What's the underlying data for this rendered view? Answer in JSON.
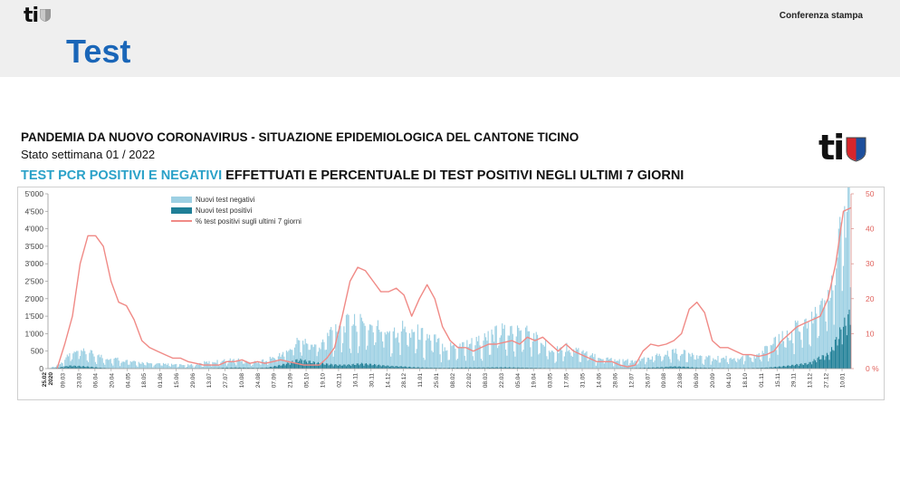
{
  "header": {
    "logo_text": "ti",
    "conference_label": "Conferenza stampa",
    "page_title": "Test"
  },
  "report": {
    "title": "PANDEMIA DA NUOVO CORONAVIRUS - SITUAZIONE EPIDEMIOLOGICA DEL CANTONE TICINO",
    "subtitle": "Stato settimana 01 / 2022",
    "chart_heading_highlight": "TEST PCR POSITIVI E NEGATIVI",
    "chart_heading_rest": " EFFETTUATI E PERCENTUALE DI TEST POSITIVI NEGLI ULTIMI 7 GIORNI",
    "logo_text": "ti"
  },
  "colors": {
    "negatives": "#9dd0e3",
    "positives": "#1f7f97",
    "percent_line": "#f08a86",
    "heading_accent": "#2aa1c8",
    "title_blue": "#1a66b8"
  },
  "chart_data": {
    "type": "bar",
    "title": "TEST PCR POSITIVI E NEGATIVI EFFETTUATI E PERCENTUALE DI TEST POSITIVI NEGLI ULTIMI 7 GIORNI",
    "y_left": {
      "range": [
        0,
        5000
      ],
      "ticks": [
        "0",
        "500",
        "1'000",
        "1'500",
        "2'000",
        "2'500",
        "3'000",
        "3'500",
        "4'000",
        "4'500",
        "5'000"
      ]
    },
    "y_right": {
      "range": [
        0,
        50
      ],
      "ticks": [
        "0 %",
        "10",
        "20",
        "30",
        "40",
        "50"
      ]
    },
    "x_start_label": "25.02\n2020",
    "x_ticks": [
      "09.03",
      "23.03",
      "06.04",
      "20.04",
      "04.05",
      "18.05",
      "01.06",
      "15.06",
      "29.06",
      "13.07",
      "27.07",
      "10.08",
      "24.08",
      "07.09",
      "21.09",
      "05.10",
      "19.10",
      "02.11",
      "16.11",
      "30.11",
      "14.12",
      "28.12",
      "11.01",
      "25.01",
      "08.02",
      "22.02",
      "08.03",
      "22.03",
      "05.04",
      "19.04",
      "03.05",
      "17.05",
      "31.05",
      "14.06",
      "28.06",
      "12.07",
      "26.07",
      "09.08",
      "23.08",
      "06.09",
      "20.09",
      "04.10",
      "18.10",
      "01.11",
      "15.11",
      "29.11",
      "13.12",
      "27.12",
      "10.01"
    ],
    "legend": [
      "Nuovi test negativi",
      "Nuovi test positivi",
      "% test positivi sugli ultimi 7 giorni"
    ],
    "legend_position": "top-left",
    "series_negatives_weekly": [
      0,
      100,
      350,
      450,
      430,
      350,
      300,
      280,
      200,
      180,
      150,
      140,
      120,
      100,
      110,
      180,
      200,
      230,
      250,
      200,
      190,
      250,
      300,
      400,
      600,
      600,
      500,
      1000,
      1250,
      1300,
      1250,
      1200,
      1150,
      1100,
      1200,
      1150,
      1000,
      900,
      650,
      700,
      750,
      800,
      900,
      1050,
      1150,
      1100,
      1100,
      900,
      650,
      600,
      650,
      550,
      400,
      350,
      300,
      250,
      220,
      250,
      330,
      380,
      450,
      430,
      380,
      330,
      300,
      320,
      330,
      350,
      380,
      600,
      800,
      1000,
      1200,
      1300,
      1400,
      1900,
      3000,
      4000
    ],
    "series_positives_weekly": [
      0,
      30,
      80,
      70,
      50,
      25,
      10,
      5,
      3,
      2,
      2,
      3,
      4,
      5,
      6,
      10,
      15,
      25,
      30,
      25,
      20,
      30,
      80,
      150,
      250,
      200,
      150,
      120,
      100,
      110,
      140,
      120,
      90,
      70,
      60,
      40,
      30,
      25,
      20,
      25,
      30,
      30,
      30,
      35,
      35,
      30,
      25,
      20,
      15,
      10,
      8,
      6,
      5,
      5,
      5,
      10,
      15,
      20,
      30,
      40,
      60,
      50,
      30,
      25,
      20,
      15,
      15,
      15,
      20,
      30,
      50,
      80,
      120,
      150,
      300,
      400,
      1000,
      1500
    ],
    "series_percent_weekly": [
      0,
      7,
      15,
      30,
      38,
      38,
      35,
      25,
      19,
      18,
      14,
      8,
      6,
      5,
      4,
      3,
      3,
      2,
      1.5,
      1,
      1,
      1,
      2,
      2,
      2.5,
      1.5,
      2,
      1.5,
      2,
      2.5,
      2,
      1.5,
      1,
      1,
      1,
      3,
      6,
      15,
      25,
      29,
      28,
      25,
      22,
      22,
      23,
      21,
      15,
      20,
      24,
      20,
      12,
      8,
      6,
      6,
      5,
      6,
      7,
      7,
      7.5,
      8,
      7,
      9,
      8,
      9,
      7,
      5,
      7,
      5,
      4,
      3,
      2,
      2,
      2,
      1,
      0.5,
      1,
      5,
      7,
      6.5,
      7,
      8,
      10,
      17,
      19,
      16,
      8,
      6,
      6,
      5,
      4,
      4,
      3.5,
      4,
      5,
      8,
      10,
      12,
      13,
      14,
      15,
      20,
      30,
      45,
      46
    ]
  }
}
